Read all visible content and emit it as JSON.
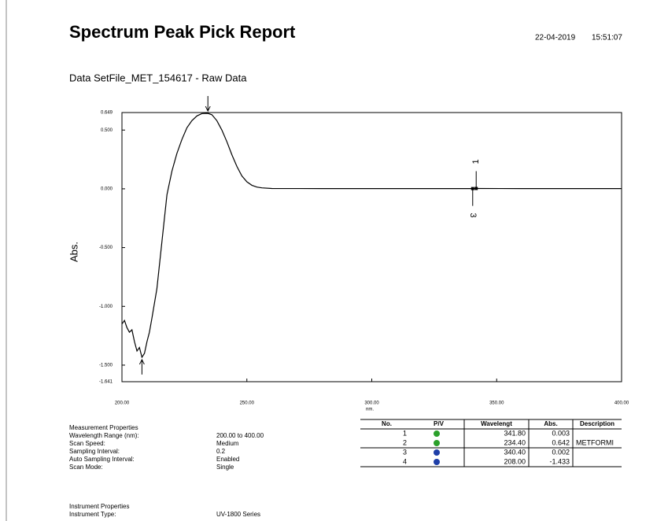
{
  "header": {
    "title": "Spectrum Peak Pick Report",
    "date": "22-04-2019",
    "time": "15:51:07",
    "dataset": "Data SetFile_MET_154617 - Raw Data"
  },
  "chart_data": {
    "type": "line",
    "ylabel": "Abs.",
    "xlabel": "nm.",
    "xlim": [
      200,
      400
    ],
    "xticks": [
      {
        "value": 200,
        "label": "200.00"
      },
      {
        "value": 250,
        "label": "250.00"
      },
      {
        "value": 300,
        "label": "300.00"
      },
      {
        "value": 350,
        "label": "350.00"
      },
      {
        "value": 400,
        "label": "400.00"
      }
    ],
    "ylim": [
      -1.641,
      0.649
    ],
    "yticks": [
      0.649,
      {
        "value": 0.5,
        "label": "0.500"
      },
      {
        "value": 0,
        "label": "0.000"
      },
      {
        "value": -0.5,
        "label": "-0.500"
      },
      {
        "value": -1,
        "label": "-1.000"
      },
      {
        "value": -1.5,
        "label": "-1.500"
      },
      -1.641
    ],
    "series": [
      {
        "name": "Raw Data",
        "color": "#000000",
        "x": [
          200,
          201,
          202,
          203,
          204,
          205,
          206,
          207,
          208,
          209,
          210,
          211,
          212,
          214,
          216,
          218,
          220,
          222,
          224,
          226,
          228,
          230,
          232,
          234.4,
          236,
          238,
          240,
          242,
          244,
          246,
          248,
          250,
          252,
          254,
          256,
          260,
          280,
          300,
          340.4,
          341.8,
          360,
          400
        ],
        "values": [
          -1.15,
          -1.12,
          -1.18,
          -1.22,
          -1.2,
          -1.3,
          -1.38,
          -1.35,
          -1.433,
          -1.4,
          -1.3,
          -1.22,
          -1.1,
          -0.85,
          -0.45,
          -0.05,
          0.15,
          0.3,
          0.42,
          0.52,
          0.58,
          0.62,
          0.64,
          0.642,
          0.63,
          0.58,
          0.5,
          0.4,
          0.29,
          0.19,
          0.11,
          0.06,
          0.03,
          0.015,
          0.008,
          0.003,
          0.002,
          0.002,
          0.002,
          0.003,
          0.002,
          0.002
        ]
      }
    ],
    "peaks": {
      "x": [
        341.8,
        234.4,
        340.4,
        208
      ],
      "values": [
        0.003,
        0.642,
        0.002,
        -1.433
      ],
      "labels": [
        "1",
        null,
        "3",
        null
      ]
    }
  },
  "measurement": {
    "title": "Measurement Properties",
    "rows": [
      [
        "Wavelength Range (nm):",
        "200.00 to 400.00"
      ],
      [
        "Scan Speed:",
        "Medium"
      ],
      [
        "Sampling Interval:",
        "0.2"
      ],
      [
        "Auto Sampling Interval:",
        "Enabled"
      ],
      [
        "Scan Mode:",
        "Single"
      ]
    ]
  },
  "instrument": {
    "title": "Instrument Properties",
    "rows": [
      [
        "Instrument Type:",
        "UV-1800 Series"
      ]
    ]
  },
  "table": {
    "columns": [
      "No.",
      "P/V",
      "Wavelengt",
      "Abs.",
      "Description"
    ],
    "rows": [
      [
        "1",
        "",
        "341.80",
        "0.003",
        ""
      ],
      [
        "2",
        "",
        "234.40",
        "0.642",
        "METFORMI"
      ],
      [
        "3",
        "",
        "340.40",
        "0.002",
        ""
      ],
      [
        "4",
        "",
        "208.00",
        "-1.433",
        ""
      ]
    ]
  }
}
